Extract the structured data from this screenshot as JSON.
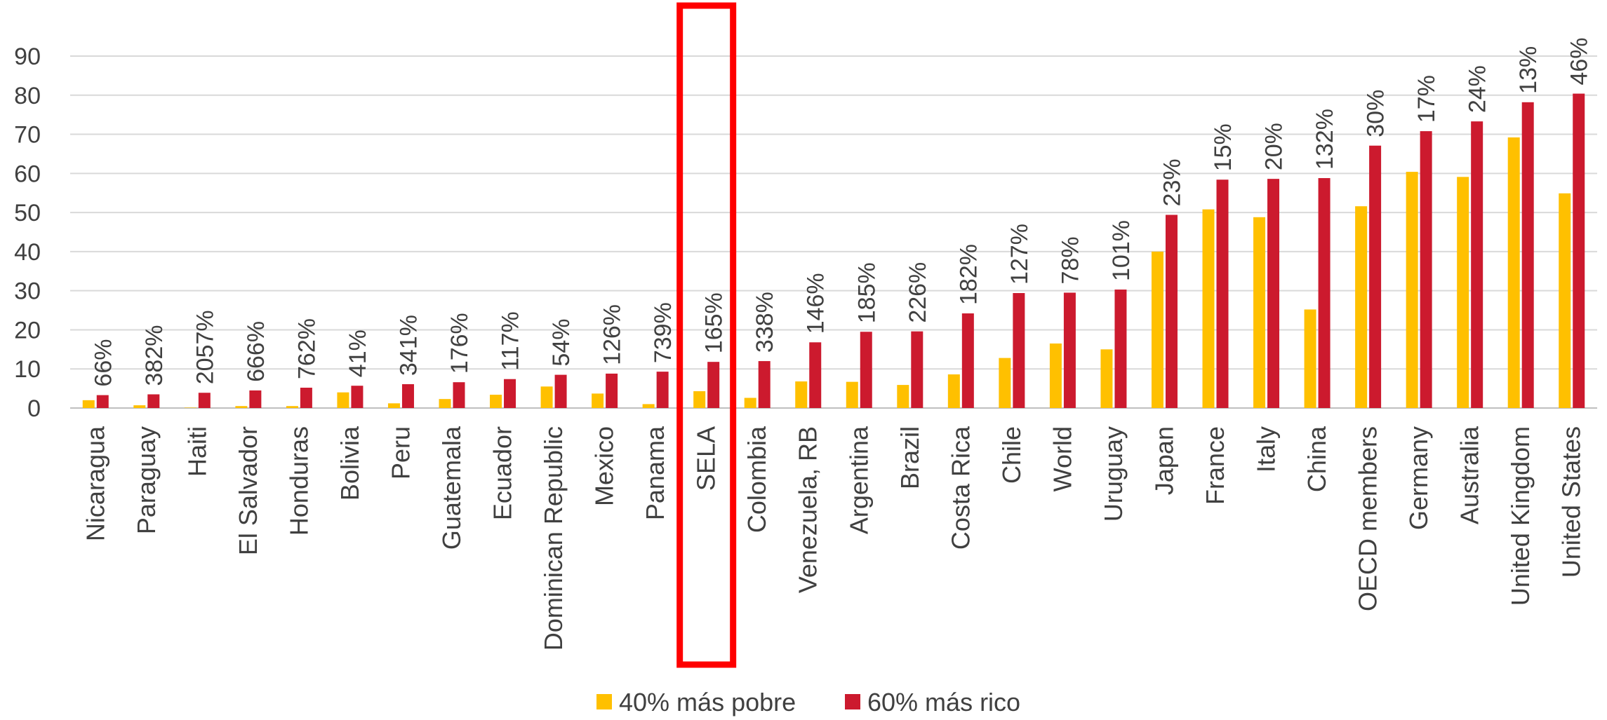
{
  "chart_data": {
    "type": "bar",
    "title": "",
    "xlabel": "",
    "ylabel": "",
    "ylim": [
      0,
      90
    ],
    "yticks": [
      0,
      10,
      20,
      30,
      40,
      50,
      60,
      70,
      80,
      90
    ],
    "grid": true,
    "legend_position": "bottom",
    "categories": [
      "Nicaragua",
      "Paraguay",
      "Haiti",
      "El Salvador",
      "Honduras",
      "Bolivia",
      "Peru",
      "Guatemala",
      "Ecuador",
      "Dominican Republic",
      "Mexico",
      "Panama",
      "SELA",
      "Colombia",
      "Venezuela, RB",
      "Argentina",
      "Brazil",
      "Costa Rica",
      "Chile",
      "World",
      "Uruguay",
      "Japan",
      "France",
      "Italy",
      "China",
      "OECD members",
      "Germany",
      "Australia",
      "United Kingdom",
      "United States"
    ],
    "series": [
      {
        "name": "40% más pobre",
        "color": "#FFC000",
        "values": [
          2.0,
          0.7,
          0.1,
          0.5,
          0.5,
          4.0,
          1.2,
          2.3,
          3.4,
          5.5,
          3.7,
          1.0,
          4.3,
          2.6,
          6.8,
          6.7,
          5.9,
          8.6,
          12.8,
          16.5,
          15.0,
          40.0,
          50.8,
          48.8,
          25.2,
          51.6,
          60.4,
          59.1,
          69.2,
          54.9
        ]
      },
      {
        "name": "60% más rico",
        "color": "#CC1A2E",
        "values": [
          3.3,
          3.5,
          3.9,
          4.5,
          5.2,
          5.7,
          6.1,
          6.6,
          7.4,
          8.5,
          8.8,
          9.3,
          11.8,
          12.0,
          16.8,
          19.5,
          19.6,
          24.2,
          29.4,
          29.5,
          30.3,
          49.4,
          58.4,
          58.6,
          58.8,
          67.1,
          70.8,
          73.3,
          78.2,
          80.4
        ]
      }
    ],
    "data_labels": [
      "66%",
      "382%",
      "2057%",
      "666%",
      "762%",
      "41%",
      "341%",
      "176%",
      "117%",
      "54%",
      "126%",
      "739%",
      "165%",
      "338%",
      "146%",
      "185%",
      "226%",
      "182%",
      "127%",
      "78%",
      "101%",
      "23%",
      "15%",
      "20%",
      "132%",
      "30%",
      "17%",
      "24%",
      "13%",
      "46%"
    ],
    "highlight_category": "SELA",
    "highlight_color": "#FF0000"
  }
}
